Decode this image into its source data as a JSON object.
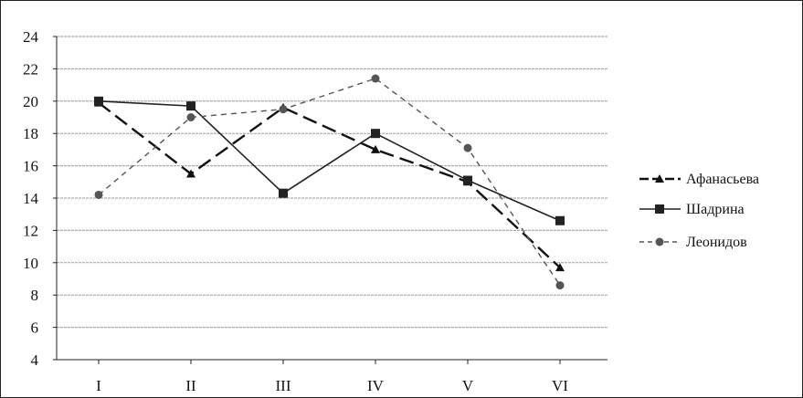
{
  "chart_data": {
    "type": "line",
    "categories": [
      "I",
      "II",
      "III",
      "IV",
      "V",
      "VI"
    ],
    "ylim": [
      4,
      24
    ],
    "yticks": [
      4,
      6,
      8,
      10,
      12,
      14,
      16,
      18,
      20,
      22,
      24
    ],
    "grid": true,
    "legend_position": "right",
    "series": [
      {
        "name": "Афанасьева",
        "values": [
          19.9,
          15.5,
          19.6,
          17.0,
          15.0,
          9.7
        ],
        "color": "#111111",
        "dash": "long-dash",
        "marker": "triangle"
      },
      {
        "name": "Шадрина",
        "values": [
          20.0,
          19.7,
          14.3,
          18.0,
          15.1,
          12.6
        ],
        "color": "#222222",
        "dash": "solid",
        "marker": "square"
      },
      {
        "name": "Леонидов",
        "values": [
          14.2,
          19.0,
          19.5,
          21.4,
          17.1,
          8.6
        ],
        "color": "#555555",
        "dash": "short-dash",
        "marker": "circle"
      }
    ]
  }
}
